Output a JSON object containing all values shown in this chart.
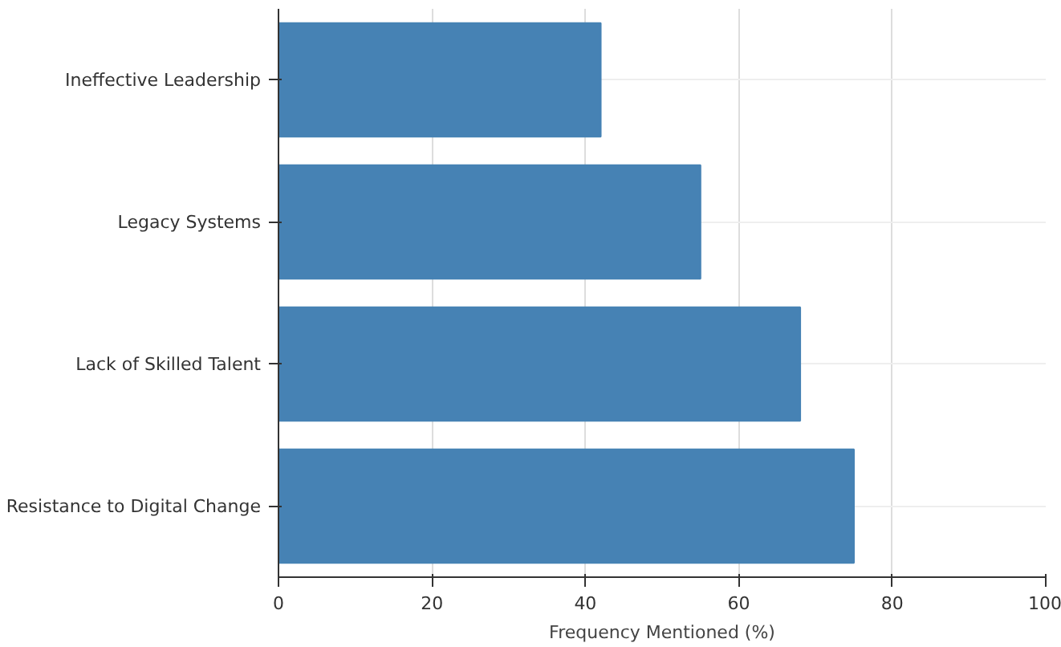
{
  "chart_data": {
    "type": "bar",
    "orientation": "horizontal",
    "xlabel": "Frequency Mentioned (%)",
    "categories": [
      "Ineffective Leadership",
      "Legacy Systems",
      "Lack of Skilled Talent",
      "Resistance to Digital Change"
    ],
    "values": [
      42,
      55,
      68,
      75
    ],
    "color": "#4682b4",
    "xlim": [
      0,
      100
    ],
    "xticks": [
      0,
      20,
      40,
      60,
      80,
      100
    ],
    "grid": true
  }
}
